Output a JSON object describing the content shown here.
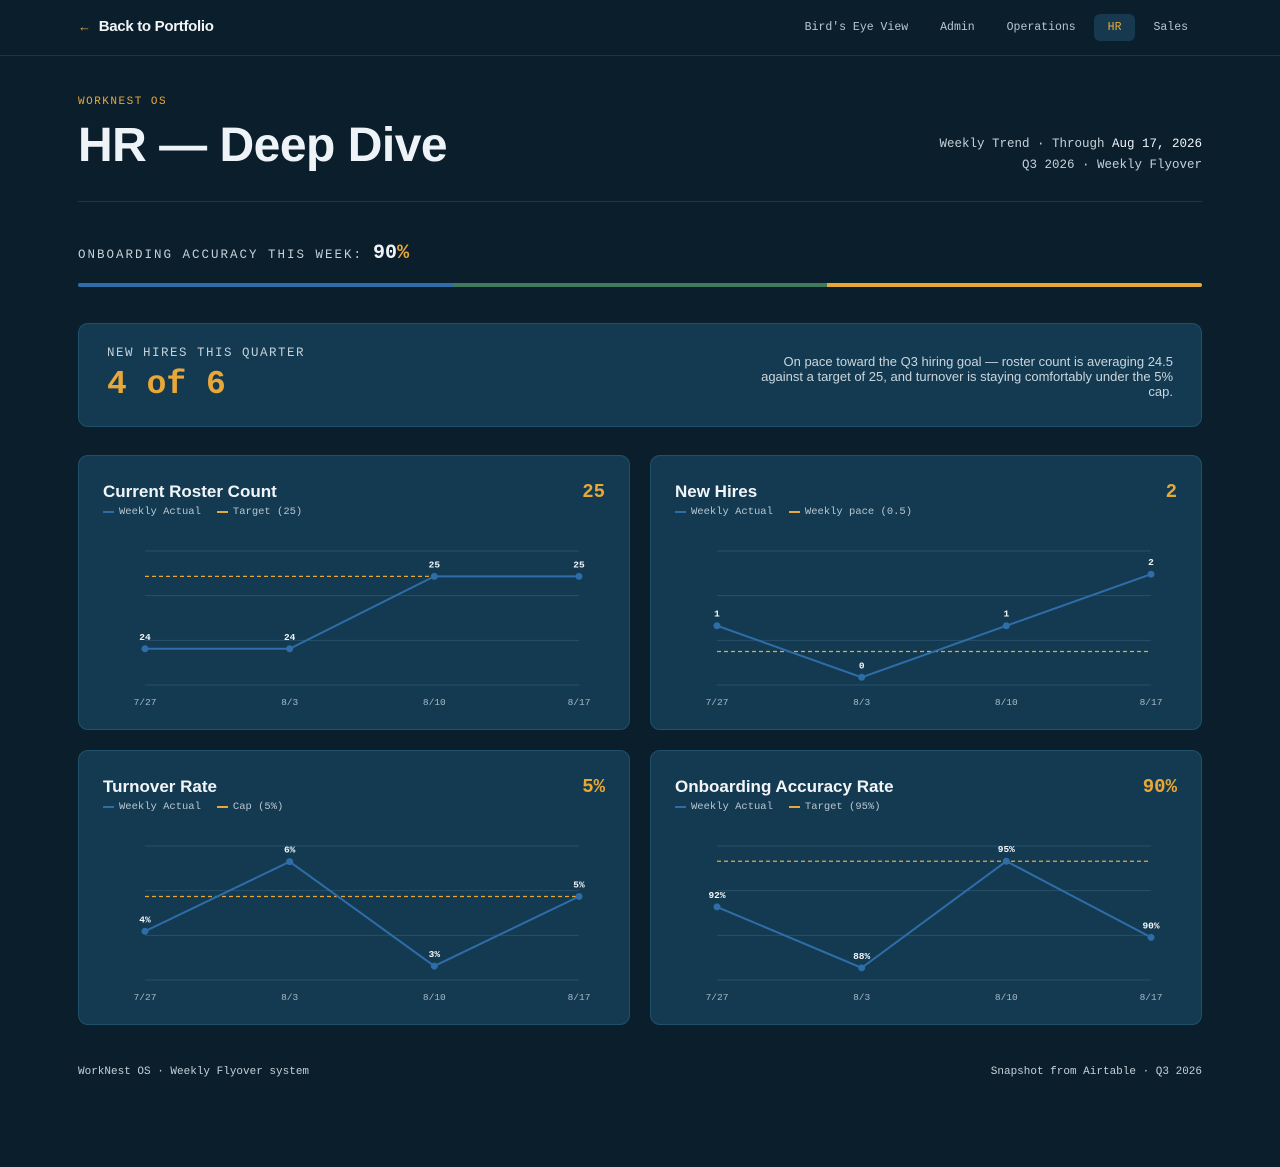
{
  "nav": {
    "back_arrow": "←",
    "back_label": "Back to Portfolio",
    "tabs": [
      {
        "label": "Bird's Eye View",
        "active": false
      },
      {
        "label": "Admin",
        "active": false
      },
      {
        "label": "Operations",
        "active": false
      },
      {
        "label": "HR",
        "active": true
      },
      {
        "label": "Sales",
        "active": false
      }
    ]
  },
  "header": {
    "eyebrow": "WORKNEST OS",
    "title": "HR — Deep Dive",
    "meta_line1_prefix": "Weekly Trend · Through ",
    "meta_line1_date": "Aug 17, 2026",
    "meta_line2": "Q3 2026 · Weekly Flyover"
  },
  "accuracy": {
    "label": "ONBOARDING ACCURACY THIS WEEK:",
    "value": "90",
    "unit": "%",
    "bar_colors": [
      "#2e6da8",
      "#3f7a5e",
      "#e8a838"
    ]
  },
  "summary": {
    "label": "NEW HIRES THIS QUARTER",
    "value": "4 of 6",
    "note": "On pace toward the Q3 hiring goal — roster count is averaging 24.5 against a target of 25, and turnover is staying comfortably under the 5% cap."
  },
  "colors": {
    "accent": "#e8a838",
    "series": "#2e6da8",
    "background": "#0a1e2b",
    "card": "#133a51"
  },
  "chart_data": [
    {
      "type": "line",
      "title": "Current Roster Count",
      "headline": "25",
      "categories": [
        "7/27",
        "8/3",
        "8/10",
        "8/17"
      ],
      "series": [
        {
          "name": "Weekly Actual",
          "values": [
            24,
            24,
            25,
            25
          ]
        }
      ],
      "point_labels": [
        "24",
        "24",
        "25",
        "25"
      ],
      "reference": {
        "name": "Target (25)",
        "value": 25
      },
      "ylim": [
        23.5,
        25.35
      ]
    },
    {
      "type": "line",
      "title": "New Hires",
      "headline": "2",
      "categories": [
        "7/27",
        "8/3",
        "8/10",
        "8/17"
      ],
      "series": [
        {
          "name": "Weekly Actual",
          "values": [
            1,
            0,
            1,
            2
          ]
        }
      ],
      "point_labels": [
        "1",
        "0",
        "1",
        "2"
      ],
      "reference": {
        "name": "Weekly pace (0.5)",
        "value": 0.5
      },
      "ylim": [
        -0.15,
        2.45
      ]
    },
    {
      "type": "line",
      "title": "Turnover Rate",
      "headline": "5%",
      "categories": [
        "7/27",
        "8/3",
        "8/10",
        "8/17"
      ],
      "series": [
        {
          "name": "Weekly Actual",
          "values": [
            4,
            6,
            3,
            5
          ]
        }
      ],
      "point_labels": [
        "4%",
        "6%",
        "3%",
        "5%"
      ],
      "reference": {
        "name": "Cap (5%)",
        "value": 5
      },
      "ylim": [
        2.6,
        6.45
      ]
    },
    {
      "type": "line",
      "title": "Onboarding Accuracy Rate",
      "headline": "90%",
      "categories": [
        "7/27",
        "8/3",
        "8/10",
        "8/17"
      ],
      "series": [
        {
          "name": "Weekly Actual",
          "values": [
            92,
            88,
            95,
            90
          ]
        }
      ],
      "point_labels": [
        "92%",
        "88%",
        "95%",
        "90%"
      ],
      "reference": {
        "name": "Target (95%)",
        "value": 95
      },
      "ylim": [
        87.2,
        96
      ]
    }
  ],
  "footer": {
    "left": "WorkNest OS · Weekly Flyover system",
    "right": "Snapshot from Airtable · Q3 2026"
  }
}
